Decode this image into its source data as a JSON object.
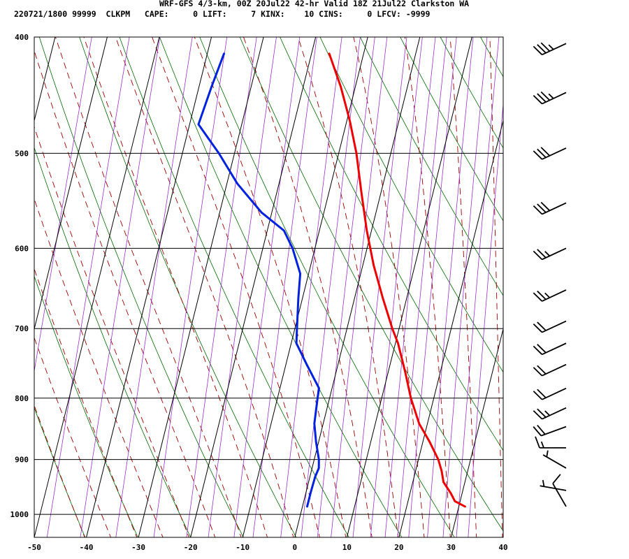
{
  "header": {
    "line1": "WRF-GFS 4/3-km, 00Z 20Jul22 42-hr Valid 18Z 21Jul22 Clarkston WA",
    "line2": "220721/1800 99999  CLKPM   CAPE:     0 LIFT:     7 KINX:    10 CINS:     0 LFCV: -9999"
  },
  "chart_data": {
    "type": "line",
    "subtype": "skew-T log-p sounding",
    "title": "WRF-GFS 4/3-km, 00Z 20Jul22 42-hr Valid 18Z 21Jul22 Clarkston WA",
    "xlabel": "",
    "ylabel": "",
    "x_unit": "deg C",
    "y_unit": "hPa",
    "y_scale": "log",
    "xlim": [
      -50,
      40
    ],
    "ylim": [
      1045,
      400
    ],
    "x_ticks": [
      -50,
      -40,
      -30,
      -20,
      -10,
      0,
      10,
      20,
      30,
      40
    ],
    "y_ticks": [
      400,
      500,
      600,
      700,
      800,
      900,
      1000
    ],
    "grid": true,
    "series": [
      {
        "color": "#ee0000",
        "points": [
          {
            "p": 985,
            "t": 31.2
          },
          {
            "p": 975,
            "t": 29.0
          },
          {
            "p": 960,
            "t": 27.8
          },
          {
            "p": 940,
            "t": 25.9
          },
          {
            "p": 920,
            "t": 25.0
          },
          {
            "p": 900,
            "t": 23.8
          },
          {
            "p": 870,
            "t": 21.3
          },
          {
            "p": 840,
            "t": 18.4
          },
          {
            "p": 800,
            "t": 15.6
          },
          {
            "p": 760,
            "t": 13.2
          },
          {
            "p": 720,
            "t": 10.5
          },
          {
            "p": 700,
            "t": 8.7
          },
          {
            "p": 660,
            "t": 5.4
          },
          {
            "p": 620,
            "t": 2.1
          },
          {
            "p": 580,
            "t": -0.9
          },
          {
            "p": 540,
            "t": -3.7
          },
          {
            "p": 500,
            "t": -6.6
          },
          {
            "p": 470,
            "t": -9.4
          },
          {
            "p": 440,
            "t": -12.8
          },
          {
            "p": 413,
            "t": -16.6
          }
        ]
      },
      {
        "color": "#0022dd",
        "points": [
          {
            "p": 985,
            "t": 0.9
          },
          {
            "p": 960,
            "t": 0.9
          },
          {
            "p": 930,
            "t": 1.0
          },
          {
            "p": 915,
            "t": 1.3
          },
          {
            "p": 900,
            "t": 0.9
          },
          {
            "p": 870,
            "t": -0.5
          },
          {
            "p": 840,
            "t": -1.7
          },
          {
            "p": 800,
            "t": -2.3
          },
          {
            "p": 785,
            "t": -2.5
          },
          {
            "p": 750,
            "t": -6.0
          },
          {
            "p": 720,
            "t": -9.0
          },
          {
            "p": 700,
            "t": -9.6
          },
          {
            "p": 660,
            "t": -10.8
          },
          {
            "p": 630,
            "t": -11.6
          },
          {
            "p": 600,
            "t": -14.3
          },
          {
            "p": 580,
            "t": -16.8
          },
          {
            "p": 560,
            "t": -22.0
          },
          {
            "p": 530,
            "t": -28.0
          },
          {
            "p": 500,
            "t": -33.0
          },
          {
            "p": 473,
            "t": -38.3
          },
          {
            "p": 440,
            "t": -37.6
          },
          {
            "p": 413,
            "t": -36.8
          }
        ]
      }
    ],
    "background_lines": {
      "isotherms": {
        "color": "#000000",
        "values": [
          -50,
          -40,
          -30,
          -20,
          -10,
          0,
          10,
          20,
          30,
          40
        ]
      },
      "isobars": {
        "color": "#000000",
        "values": [
          400,
          500,
          600,
          700,
          800,
          900,
          1000
        ]
      },
      "dry_adiabats": {
        "color": "#006600",
        "style": "solid"
      },
      "moist_adiabats": {
        "color": "#990000",
        "style": "dashed"
      },
      "mixing_ratio": {
        "color": "#9933cc",
        "style": "solid"
      }
    },
    "wind_barbs": {
      "color": "#000000",
      "placement": "right",
      "barbs": [
        {
          "p": 985,
          "dir_deg": 330,
          "speed_kt": 10
        },
        {
          "p": 955,
          "dir_deg": 280,
          "speed_kt": 5
        },
        {
          "p": 915,
          "dir_deg": 300,
          "speed_kt": 5
        },
        {
          "p": 880,
          "dir_deg": 270,
          "speed_kt": 15
        },
        {
          "p": 845,
          "dir_deg": 250,
          "speed_kt": 20
        },
        {
          "p": 815,
          "dir_deg": 245,
          "speed_kt": 25
        },
        {
          "p": 785,
          "dir_deg": 245,
          "speed_kt": 20
        },
        {
          "p": 750,
          "dir_deg": 245,
          "speed_kt": 20
        },
        {
          "p": 720,
          "dir_deg": 245,
          "speed_kt": 20
        },
        {
          "p": 690,
          "dir_deg": 245,
          "speed_kt": 20
        },
        {
          "p": 650,
          "dir_deg": 245,
          "speed_kt": 25
        },
        {
          "p": 600,
          "dir_deg": 245,
          "speed_kt": 25
        },
        {
          "p": 550,
          "dir_deg": 245,
          "speed_kt": 30
        },
        {
          "p": 495,
          "dir_deg": 245,
          "speed_kt": 30
        },
        {
          "p": 445,
          "dir_deg": 245,
          "speed_kt": 35
        },
        {
          "p": 405,
          "dir_deg": 245,
          "speed_kt": 35
        }
      ]
    }
  }
}
